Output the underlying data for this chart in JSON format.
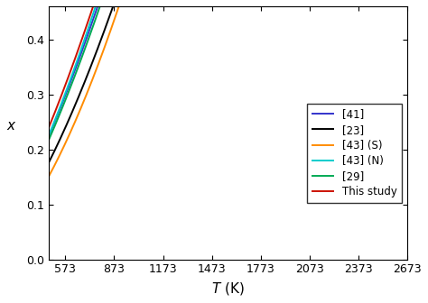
{
  "title": "",
  "xlabel": "$T$ (K)",
  "ylabel": "$x$",
  "T_min": 473,
  "T_max": 2673,
  "x_ticks": [
    573,
    873,
    1173,
    1473,
    1773,
    2073,
    2373,
    2673
  ],
  "y_ticks": [
    0.0,
    0.1,
    0.2,
    0.3,
    0.4
  ],
  "ylim": [
    0.0,
    0.46
  ],
  "curves": [
    {
      "label": "[41]",
      "color": "#3333cc",
      "A": 2.8e-05,
      "n": 1.46
    },
    {
      "label": "[23]",
      "color": "#000000",
      "A": 1.05e-05,
      "n": 1.58
    },
    {
      "label": "[43] (S)",
      "color": "#ff8c00",
      "A": 3.8e-06,
      "n": 1.72
    },
    {
      "label": "[43] (N)",
      "color": "#00cccc",
      "A": 2.2e-05,
      "n": 1.5
    },
    {
      "label": "[29]",
      "color": "#00aa55",
      "A": 2.55e-05,
      "n": 1.47
    },
    {
      "label": "This study",
      "color": "#cc1100",
      "A": 3.6e-05,
      "n": 1.43
    }
  ],
  "legend_loc": "center right",
  "background_color": "#ffffff",
  "linewidth": 1.4
}
